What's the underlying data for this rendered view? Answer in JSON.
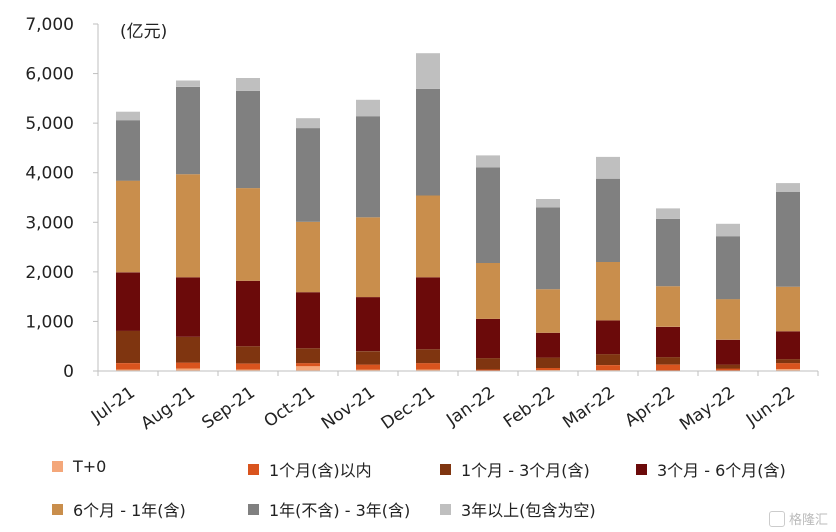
{
  "chart_data": {
    "type": "bar",
    "stacked": true,
    "unit_label": "(亿元)",
    "categories": [
      "Jul-21",
      "Aug-21",
      "Sep-21",
      "Oct-21",
      "Nov-21",
      "Dec-21",
      "Jan-22",
      "Feb-22",
      "Mar-22",
      "Apr-22",
      "May-22",
      "Jun-22"
    ],
    "y_ticks": [
      "0",
      "1,000",
      "2,000",
      "3,000",
      "4,000",
      "5,000",
      "6,000",
      "7,000"
    ],
    "ylim": [
      0,
      7000
    ],
    "grid": false,
    "legend_position": "bottom",
    "series": [
      {
        "name": "T+0",
        "color": "#F4A77A",
        "values": [
          30,
          50,
          30,
          100,
          30,
          30,
          0,
          20,
          20,
          10,
          10,
          40
        ]
      },
      {
        "name": "1个月(含)以内",
        "color": "#D9541E",
        "values": [
          130,
          120,
          120,
          60,
          100,
          130,
          30,
          40,
          100,
          120,
          40,
          120
        ]
      },
      {
        "name": "1个月 - 3个月(含)",
        "color": "#7F3510",
        "values": [
          650,
          520,
          350,
          300,
          270,
          280,
          230,
          210,
          220,
          150,
          80,
          80
        ]
      },
      {
        "name": "3个月 - 6个月(含)",
        "color": "#6B0A0A",
        "values": [
          1180,
          1200,
          1320,
          1130,
          1090,
          1450,
          790,
          500,
          680,
          610,
          500,
          560
        ]
      },
      {
        "name": "6个月 - 1年(含)",
        "color": "#C98E4C",
        "values": [
          1850,
          2080,
          1870,
          1420,
          1610,
          1650,
          1130,
          880,
          1180,
          820,
          820,
          900
        ]
      },
      {
        "name": "1年(不含) - 3年(含)",
        "color": "#808080",
        "values": [
          1220,
          1760,
          1960,
          1890,
          2040,
          2150,
          1930,
          1650,
          1680,
          1360,
          1270,
          1910
        ]
      },
      {
        "name": "3年以上(包含为空)",
        "color": "#BFBFBF",
        "values": [
          170,
          130,
          260,
          200,
          330,
          720,
          240,
          170,
          440,
          210,
          250,
          180
        ]
      }
    ]
  },
  "watermark": {
    "text": "格隆汇"
  }
}
